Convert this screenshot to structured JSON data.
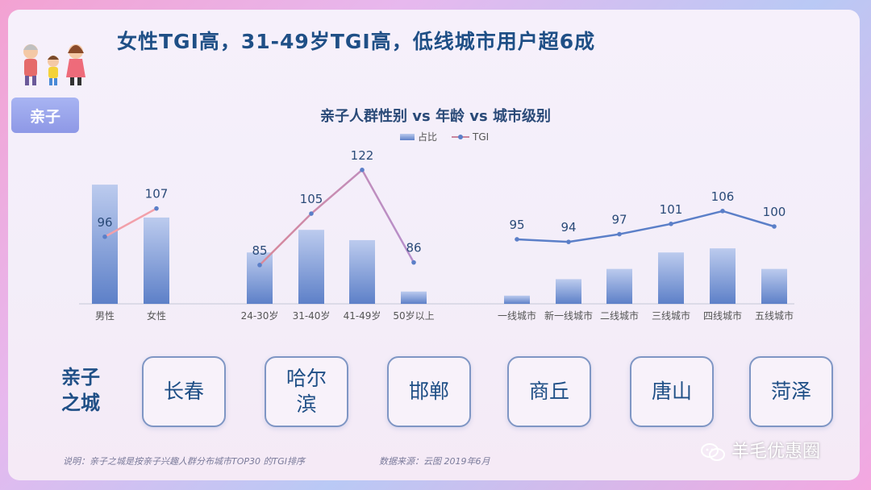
{
  "title": "女性TGI高，31-49岁TGI高，低线城市用户超6成",
  "tag": "亲子",
  "chart_data": {
    "type": "bar",
    "title": "亲子人群性别 vs 年龄 vs 城市级别",
    "legend": [
      "占比",
      "TGI"
    ],
    "groups": [
      {
        "categories": [
          "男性",
          "女性"
        ],
        "share": [
          0.58,
          0.42
        ],
        "tgi": [
          96,
          107
        ]
      },
      {
        "categories": [
          "24-30岁",
          "31-40岁",
          "41-49岁",
          "50岁以上"
        ],
        "share": [
          0.25,
          0.36,
          0.31,
          0.06
        ],
        "tgi": [
          85,
          105,
          122,
          86
        ]
      },
      {
        "categories": [
          "一线城市",
          "新一线城市",
          "二线城市",
          "三线城市",
          "四线城市",
          "五线城市"
        ],
        "share": [
          0.04,
          0.12,
          0.17,
          0.25,
          0.27,
          0.17
        ],
        "tgi": [
          95,
          94,
          97,
          101,
          106,
          100
        ]
      }
    ],
    "colors": {
      "bar_top": "#bccbee",
      "bar_bottom": "#5d80c8",
      "line_gender": "#f2a0aa",
      "line_age_start": "#d9899a",
      "line_age_end": "#b58fcc",
      "line_city": "#5b7fc8"
    }
  },
  "city_section": {
    "label_line1": "亲子",
    "label_line2": "之城",
    "cities": [
      "长春",
      "哈尔滨",
      "邯郸",
      "商丘",
      "唐山",
      "菏泽"
    ]
  },
  "note": "说明：亲子之城是按亲子兴趣人群分布城市TOP30 的TGI排序",
  "source": "数据来源：云图  2019年6月",
  "watermark": "羊毛优惠圈"
}
